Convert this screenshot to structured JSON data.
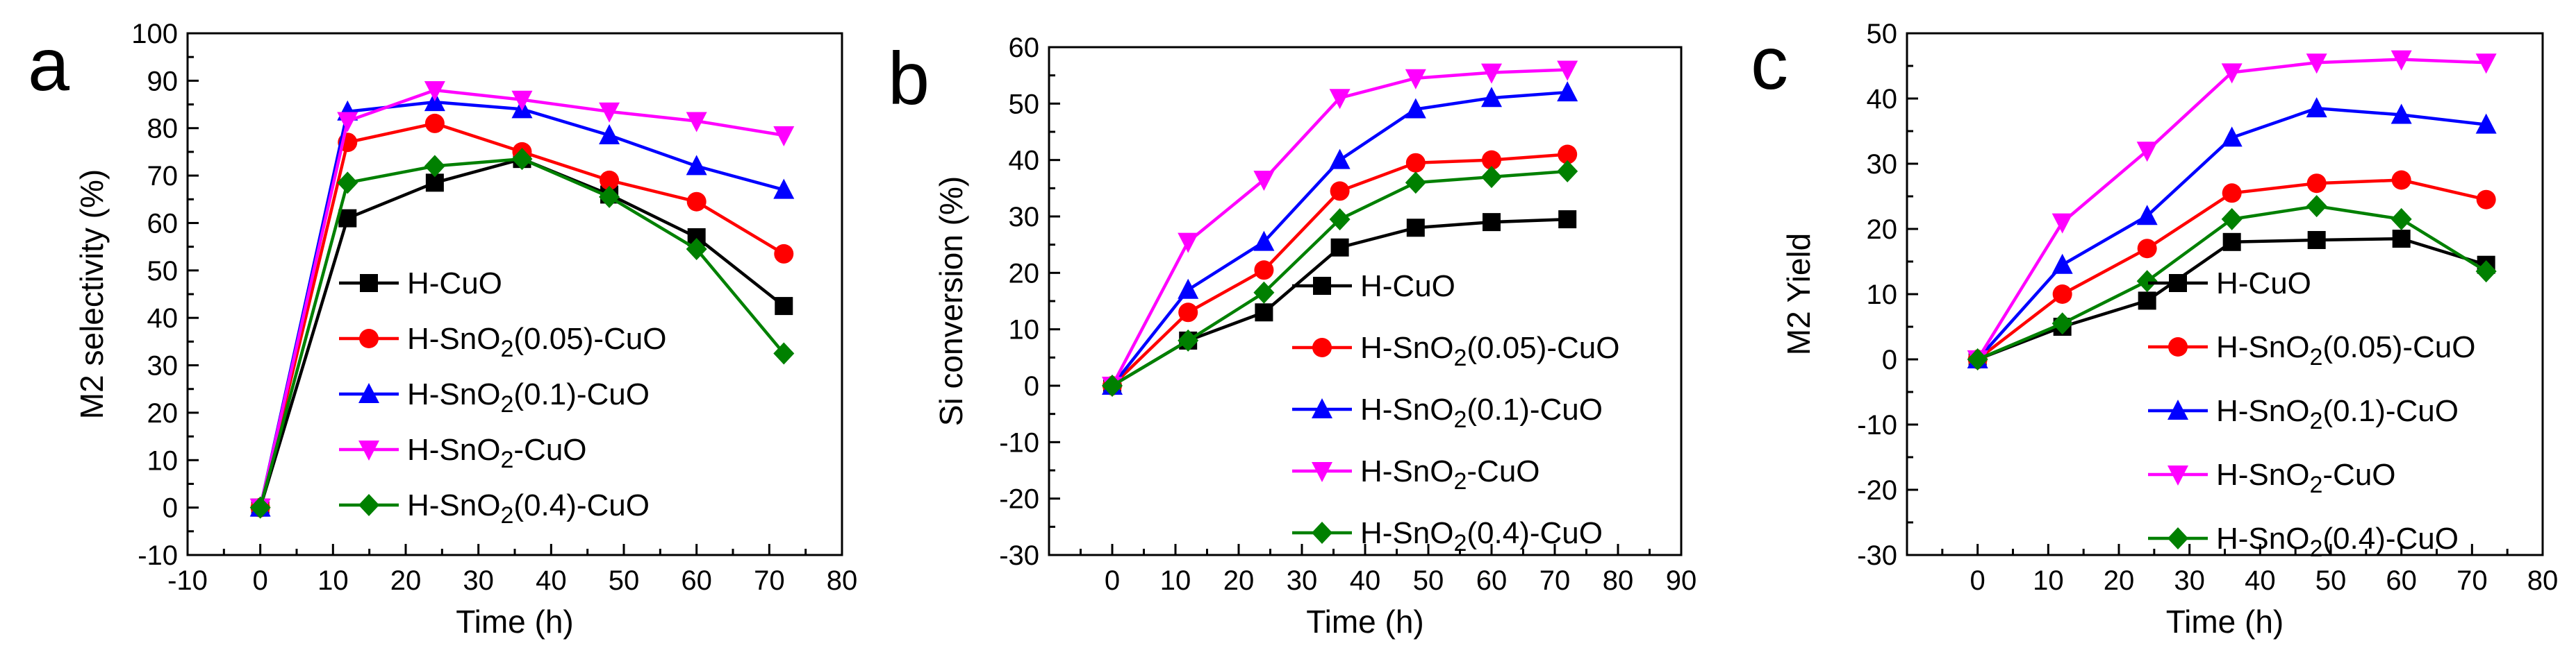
{
  "chart_data": [
    {
      "type": "line",
      "panel_label": "a",
      "xlabel": "Time (h)",
      "ylabel": "M2 selectivity (%)",
      "xlim": [
        -10,
        80
      ],
      "ylim": [
        -10,
        100
      ],
      "xticks": [
        -10,
        0,
        10,
        20,
        30,
        40,
        50,
        60,
        70,
        80
      ],
      "yticks": [
        -10,
        0,
        10,
        20,
        30,
        40,
        50,
        60,
        70,
        80,
        90,
        100
      ],
      "x": [
        0,
        12,
        24,
        36,
        48,
        60,
        72
      ],
      "legend_position": "lower-center",
      "series": [
        {
          "name": "H-CuO",
          "parts": [
            "H-CuO"
          ],
          "color": "#000000",
          "marker": "square",
          "values": [
            0,
            61,
            68.5,
            73.5,
            66,
            57,
            42.5
          ]
        },
        {
          "name": "H-SnO2(0.05)-CuO",
          "parts": [
            "H-SnO",
            "2",
            "(0.05)-CuO"
          ],
          "color": "#ff0000",
          "marker": "circle",
          "values": [
            0,
            77,
            81,
            75,
            69,
            64.5,
            53.5
          ]
        },
        {
          "name": "H-SnO2(0.1)-CuO",
          "parts": [
            "H-SnO",
            "2",
            "(0.1)-CuO"
          ],
          "color": "#0000ff",
          "marker": "triangle-up",
          "values": [
            0,
            83.5,
            85.5,
            84,
            78.5,
            72,
            67
          ]
        },
        {
          "name": "H-SnO2-CuO",
          "parts": [
            "H-SnO",
            "2",
            "-CuO"
          ],
          "color": "#ff00ff",
          "marker": "triangle-down",
          "values": [
            0,
            81.5,
            88,
            86,
            83.5,
            81.5,
            78.5
          ]
        },
        {
          "name": "H-SnO2(0.4)-CuO",
          "parts": [
            "H-SnO",
            "2",
            "(0.4)-CuO"
          ],
          "color": "#008000",
          "marker": "diamond",
          "values": [
            0,
            68.5,
            72,
            73.5,
            65.5,
            54.5,
            32.5
          ]
        }
      ]
    },
    {
      "type": "line",
      "panel_label": "b",
      "xlabel": "Time (h)",
      "ylabel": "Si conversion (%)",
      "xlim": [
        -10,
        90
      ],
      "ylim": [
        -30,
        60
      ],
      "xticks": [
        0,
        10,
        20,
        30,
        40,
        50,
        60,
        70,
        80,
        90
      ],
      "yticks": [
        -30,
        -20,
        -10,
        0,
        10,
        20,
        30,
        40,
        50,
        60
      ],
      "x": [
        0,
        12,
        24,
        36,
        48,
        60,
        72
      ],
      "legend_position": "lower-right",
      "series": [
        {
          "name": "H-CuO",
          "parts": [
            "H-CuO"
          ],
          "color": "#000000",
          "marker": "square",
          "values": [
            0,
            8,
            13,
            24.5,
            28,
            29,
            29.5
          ]
        },
        {
          "name": "H-SnO2(0.05)-CuO",
          "parts": [
            "H-SnO",
            "2",
            "(0.05)-CuO"
          ],
          "color": "#ff0000",
          "marker": "circle",
          "values": [
            0,
            13,
            20.5,
            34.5,
            39.5,
            40,
            41
          ]
        },
        {
          "name": "H-SnO2(0.1)-CuO",
          "parts": [
            "H-SnO",
            "2",
            "(0.1)-CuO"
          ],
          "color": "#0000ff",
          "marker": "triangle-up",
          "values": [
            0,
            17,
            25.5,
            40,
            49,
            51,
            52
          ]
        },
        {
          "name": "H-SnO2-CuO",
          "parts": [
            "H-SnO",
            "2",
            "-CuO"
          ],
          "color": "#ff00ff",
          "marker": "triangle-down",
          "values": [
            0,
            25.5,
            36.5,
            51,
            54.5,
            55.5,
            56
          ]
        },
        {
          "name": "H-SnO2(0.4)-CuO",
          "parts": [
            "H-SnO",
            "2",
            "(0.4)-CuO"
          ],
          "color": "#008000",
          "marker": "diamond",
          "values": [
            0,
            8,
            16.5,
            29.5,
            36,
            37,
            38
          ]
        }
      ]
    },
    {
      "type": "line",
      "panel_label": "c",
      "xlabel": "Time (h)",
      "ylabel": "M2 Yield",
      "xlim": [
        -10,
        80
      ],
      "ylim": [
        -30,
        50
      ],
      "xticks": [
        0,
        10,
        20,
        30,
        40,
        50,
        60,
        70,
        80
      ],
      "yticks": [
        -30,
        -20,
        -10,
        0,
        10,
        20,
        30,
        40,
        50
      ],
      "x": [
        0,
        12,
        24,
        36,
        48,
        60,
        72
      ],
      "legend_position": "lower-right",
      "series": [
        {
          "name": "H-CuO",
          "parts": [
            "H-CuO"
          ],
          "color": "#000000",
          "marker": "square",
          "values": [
            0,
            5,
            9,
            18,
            18.3,
            18.5,
            14.5
          ]
        },
        {
          "name": "H-SnO2(0.05)-CuO",
          "parts": [
            "H-SnO",
            "2",
            "(0.05)-CuO"
          ],
          "color": "#ff0000",
          "marker": "circle",
          "values": [
            0,
            10,
            17,
            25.5,
            27,
            27.5,
            24.5
          ]
        },
        {
          "name": "H-SnO2(0.1)-CuO",
          "parts": [
            "H-SnO",
            "2",
            "(0.1)-CuO"
          ],
          "color": "#0000ff",
          "marker": "triangle-up",
          "values": [
            0,
            14.5,
            22,
            34,
            38.5,
            37.5,
            36
          ]
        },
        {
          "name": "H-SnO2-CuO",
          "parts": [
            "H-SnO",
            "2",
            "-CuO"
          ],
          "color": "#ff00ff",
          "marker": "triangle-down",
          "values": [
            0,
            21,
            32,
            44,
            45.5,
            46,
            45.5
          ]
        },
        {
          "name": "H-SnO2(0.4)-CuO",
          "parts": [
            "H-SnO",
            "2",
            "(0.4)-CuO"
          ],
          "color": "#008000",
          "marker": "diamond",
          "values": [
            0,
            5.5,
            12,
            21.5,
            23.5,
            21.5,
            13.5
          ]
        }
      ]
    }
  ]
}
